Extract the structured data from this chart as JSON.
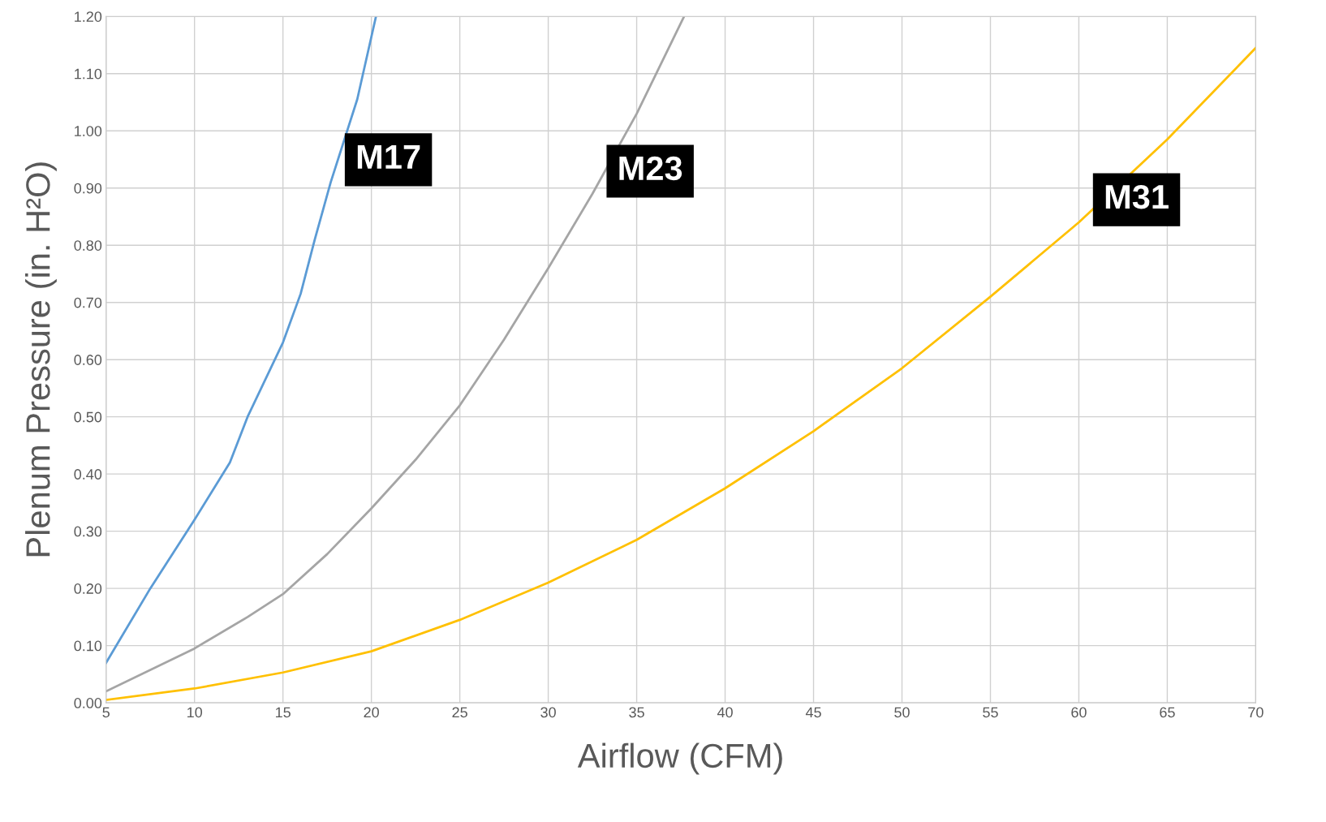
{
  "chart_data": {
    "type": "line",
    "xlabel": "Airflow (CFM)",
    "ylabel": "Plenum Pressure (in. H²O)",
    "xlim": [
      5,
      70
    ],
    "xticks": [
      5,
      10,
      15,
      20,
      25,
      30,
      35,
      40,
      45,
      50,
      55,
      60,
      65,
      70
    ],
    "ylim": [
      0,
      1.2
    ],
    "yticks": [
      {
        "value": 0,
        "label": "0.00"
      },
      {
        "value": 0.1,
        "label": "0.10"
      },
      {
        "value": 0.2,
        "label": "0.20"
      },
      {
        "value": 0.3,
        "label": "0.30"
      },
      {
        "value": 0.4,
        "label": "0.40"
      },
      {
        "value": 0.5,
        "label": "0.50"
      },
      {
        "value": 0.6,
        "label": "0.60"
      },
      {
        "value": 0.7,
        "label": "0.70"
      },
      {
        "value": 0.8,
        "label": "0.80"
      },
      {
        "value": 0.9,
        "label": "0.90"
      },
      {
        "value": 1.0,
        "label": "1.00"
      },
      {
        "value": 1.1,
        "label": "1.10"
      },
      {
        "value": 1.2,
        "label": "1.20"
      }
    ],
    "grid": true,
    "marker": "none",
    "line_style": "solid",
    "series": [
      {
        "name": "M17",
        "color": "#5b9bd5",
        "x": [
          5,
          7.5,
          10,
          12,
          13,
          15,
          16,
          16.8,
          17.7,
          19.2,
          20.26
        ],
        "values": [
          0.07,
          0.2,
          0.32,
          0.42,
          0.5,
          0.63,
          0.715,
          0.81,
          0.91,
          1.055,
          1.2
        ]
      },
      {
        "name": "M23",
        "color": "#a5a5a5",
        "x": [
          5,
          10,
          13,
          15,
          17.5,
          20,
          22.5,
          25,
          27.5,
          30,
          32.5,
          35,
          37.68
        ],
        "values": [
          0.02,
          0.095,
          0.15,
          0.19,
          0.26,
          0.34,
          0.425,
          0.52,
          0.635,
          0.76,
          0.89,
          1.03,
          1.2
        ]
      },
      {
        "name": "M31",
        "color": "#ffc000",
        "x": [
          5,
          10,
          15,
          20,
          25,
          30,
          35,
          40,
          45,
          50,
          55,
          60,
          65,
          70
        ],
        "values": [
          0.005,
          0.025,
          0.053,
          0.09,
          0.145,
          0.21,
          0.285,
          0.375,
          0.475,
          0.585,
          0.71,
          0.84,
          0.985,
          1.145
        ]
      }
    ]
  }
}
